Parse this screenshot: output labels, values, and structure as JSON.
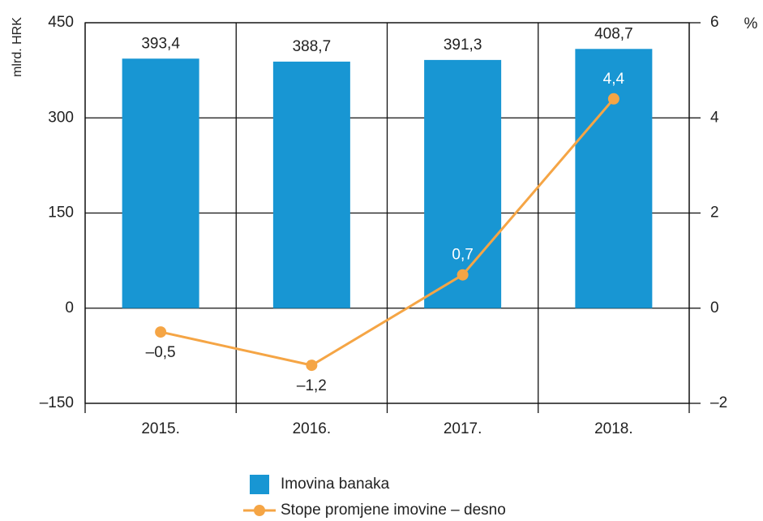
{
  "chart_data": {
    "type": "bar",
    "ylabel": "mlrd. HRK",
    "y2label": "%",
    "categories": [
      "2015.",
      "2016.",
      "2017.",
      "2018."
    ],
    "series": [
      {
        "name": "Imovina banaka",
        "type": "bar",
        "color": "#1896d3",
        "values": [
          393.4,
          388.7,
          391.3,
          408.7
        ],
        "value_labels": [
          "393,4",
          "388,7",
          "391,3",
          "408,7"
        ]
      },
      {
        "name": "Stope promjene imovine – desno",
        "type": "line",
        "axis": "y2",
        "color": "#f5a545",
        "values": [
          -0.5,
          -1.2,
          0.7,
          4.4
        ],
        "value_labels": [
          "–0,5",
          "–1,2",
          "0,7",
          "4,4"
        ]
      }
    ],
    "ylim": [
      -150,
      450
    ],
    "yticks": [
      {
        "value": -150,
        "label": "–150"
      },
      0,
      150,
      300,
      450
    ],
    "y2lim": [
      -2,
      6
    ],
    "y2ticks": [
      {
        "value": -2,
        "label": "–2"
      },
      0,
      2,
      4,
      6
    ],
    "grid": true
  }
}
